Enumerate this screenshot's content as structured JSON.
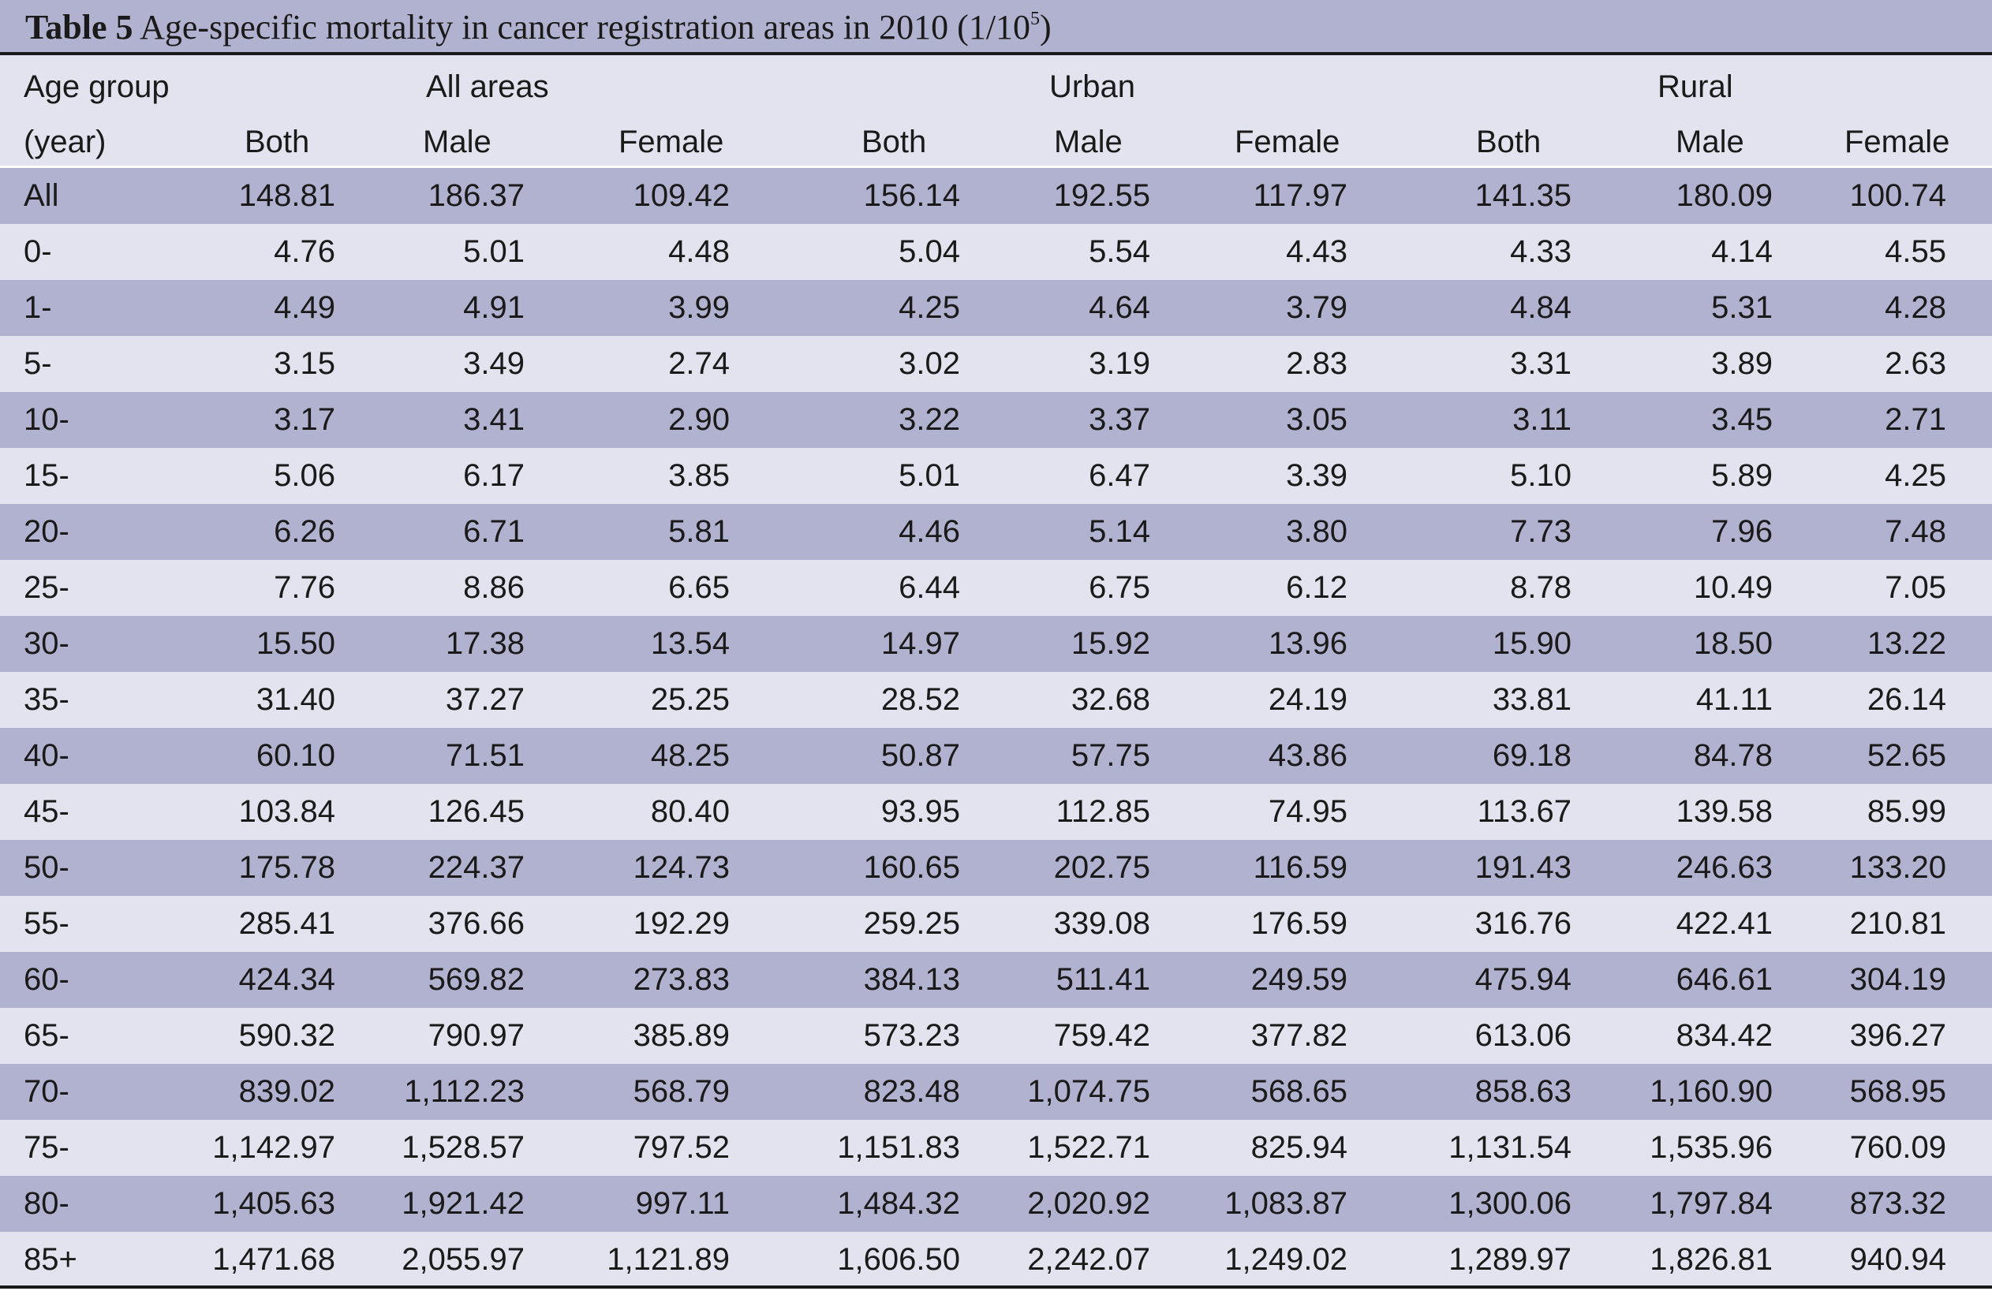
{
  "table": {
    "label": "Table 5",
    "title_text": " Age-specific mortality in cancer registration areas in 2010 (1/10",
    "title_sup": "5",
    "title_end": ")",
    "header": {
      "age_group": "Age group",
      "year": "(year)",
      "groups": [
        "All areas",
        "Urban",
        "Rural"
      ],
      "subcols": [
        "Both",
        "Male",
        "Female",
        "Both",
        "Male",
        "Female",
        "Both",
        "Male",
        "Female"
      ]
    },
    "rows": [
      {
        "age": "All",
        "values": [
          "148.81",
          "186.37",
          "109.42",
          "156.14",
          "192.55",
          "117.97",
          "141.35",
          "180.09",
          "100.74"
        ]
      },
      {
        "age": "0-",
        "values": [
          "4.76",
          "5.01",
          "4.48",
          "5.04",
          "5.54",
          "4.43",
          "4.33",
          "4.14",
          "4.55"
        ]
      },
      {
        "age": "1-",
        "values": [
          "4.49",
          "4.91",
          "3.99",
          "4.25",
          "4.64",
          "3.79",
          "4.84",
          "5.31",
          "4.28"
        ]
      },
      {
        "age": "5-",
        "values": [
          "3.15",
          "3.49",
          "2.74",
          "3.02",
          "3.19",
          "2.83",
          "3.31",
          "3.89",
          "2.63"
        ]
      },
      {
        "age": "10-",
        "values": [
          "3.17",
          "3.41",
          "2.90",
          "3.22",
          "3.37",
          "3.05",
          "3.11",
          "3.45",
          "2.71"
        ]
      },
      {
        "age": "15-",
        "values": [
          "5.06",
          "6.17",
          "3.85",
          "5.01",
          "6.47",
          "3.39",
          "5.10",
          "5.89",
          "4.25"
        ]
      },
      {
        "age": "20-",
        "values": [
          "6.26",
          "6.71",
          "5.81",
          "4.46",
          "5.14",
          "3.80",
          "7.73",
          "7.96",
          "7.48"
        ]
      },
      {
        "age": "25-",
        "values": [
          "7.76",
          "8.86",
          "6.65",
          "6.44",
          "6.75",
          "6.12",
          "8.78",
          "10.49",
          "7.05"
        ]
      },
      {
        "age": "30-",
        "values": [
          "15.50",
          "17.38",
          "13.54",
          "14.97",
          "15.92",
          "13.96",
          "15.90",
          "18.50",
          "13.22"
        ]
      },
      {
        "age": "35-",
        "values": [
          "31.40",
          "37.27",
          "25.25",
          "28.52",
          "32.68",
          "24.19",
          "33.81",
          "41.11",
          "26.14"
        ]
      },
      {
        "age": "40-",
        "values": [
          "60.10",
          "71.51",
          "48.25",
          "50.87",
          "57.75",
          "43.86",
          "69.18",
          "84.78",
          "52.65"
        ]
      },
      {
        "age": "45-",
        "values": [
          "103.84",
          "126.45",
          "80.40",
          "93.95",
          "112.85",
          "74.95",
          "113.67",
          "139.58",
          "85.99"
        ]
      },
      {
        "age": "50-",
        "values": [
          "175.78",
          "224.37",
          "124.73",
          "160.65",
          "202.75",
          "116.59",
          "191.43",
          "246.63",
          "133.20"
        ]
      },
      {
        "age": "55-",
        "values": [
          "285.41",
          "376.66",
          "192.29",
          "259.25",
          "339.08",
          "176.59",
          "316.76",
          "422.41",
          "210.81"
        ]
      },
      {
        "age": "60-",
        "values": [
          "424.34",
          "569.82",
          "273.83",
          "384.13",
          "511.41",
          "249.59",
          "475.94",
          "646.61",
          "304.19"
        ]
      },
      {
        "age": "65-",
        "values": [
          "590.32",
          "790.97",
          "385.89",
          "573.23",
          "759.42",
          "377.82",
          "613.06",
          "834.42",
          "396.27"
        ]
      },
      {
        "age": "70-",
        "values": [
          "839.02",
          "1,112.23",
          "568.79",
          "823.48",
          "1,074.75",
          "568.65",
          "858.63",
          "1,160.90",
          "568.95"
        ]
      },
      {
        "age": "75-",
        "values": [
          "1,142.97",
          "1,528.57",
          "797.52",
          "1,151.83",
          "1,522.71",
          "825.94",
          "1,131.54",
          "1,535.96",
          "760.09"
        ]
      },
      {
        "age": "80-",
        "values": [
          "1,405.63",
          "1,921.42",
          "997.11",
          "1,484.32",
          "2,020.92",
          "1,083.87",
          "1,300.06",
          "1,797.84",
          "873.32"
        ]
      },
      {
        "age": "85+",
        "values": [
          "1,471.68",
          "2,055.97",
          "1,121.89",
          "1,606.50",
          "2,242.07",
          "1,249.02",
          "1,289.97",
          "1,826.81",
          "940.94"
        ]
      }
    ]
  },
  "colors": {
    "band_dark": "#b1b2d0",
    "band_light": "#e3e3ef",
    "rule": "#1a1a1a"
  }
}
